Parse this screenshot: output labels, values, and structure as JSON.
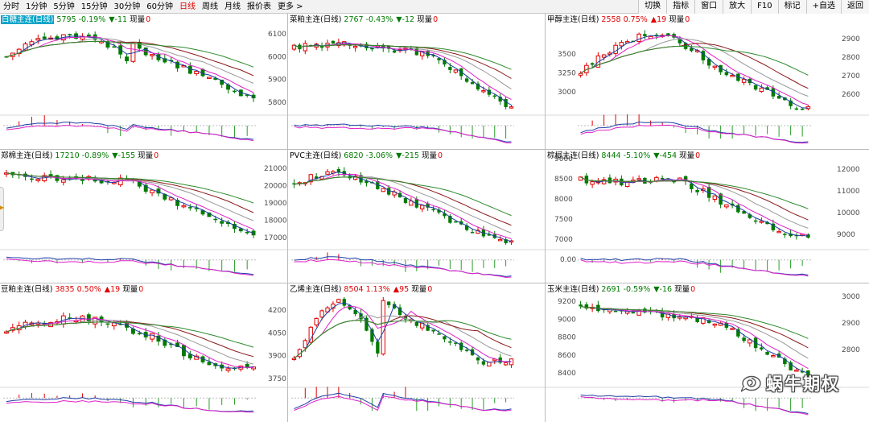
{
  "toolbar": {
    "periods": [
      "分时",
      "1分钟",
      "5分钟",
      "15分钟",
      "30分钟",
      "60分钟",
      "日线",
      "周线",
      "月线",
      "报价表",
      "更多 >"
    ],
    "active_period": "日线",
    "actions": [
      "切换",
      "指标",
      "窗口",
      "放大",
      "F10",
      "标记",
      "+自选",
      "返回"
    ]
  },
  "colors": {
    "up": "#e00000",
    "down": "#007a00",
    "ma5": "#1f3ea6",
    "ma10": "#e020c8",
    "ma20": "#999999",
    "ma40": "#8b1a1a",
    "ma60": "#2e8b2e",
    "highlight": "#0aa3c8"
  },
  "panels": [
    {
      "name": "白糖主连(日线)",
      "highlight": true,
      "price": "5795",
      "pct": "-0.19%",
      "dir": "down",
      "arrow": "▼",
      "chg": "-11",
      "vol_label": "现量",
      "vol_value": "0",
      "yticks": []
    },
    {
      "name": "菜粕主连(日线)",
      "highlight": false,
      "price": "2767",
      "pct": "-0.43%",
      "dir": "down",
      "arrow": "▼",
      "chg": "-12",
      "vol_label": "现量",
      "vol_value": "0",
      "yticks": [
        "6100",
        "6000",
        "5900",
        "5800"
      ]
    },
    {
      "name": "甲醇主连(日线)",
      "highlight": false,
      "price": "2558",
      "pct": "0.75%",
      "dir": "up",
      "arrow": "▲",
      "chg": "19",
      "vol_label": "现量",
      "vol_value": "0",
      "yticks": [
        "3500",
        "3250",
        "3000"
      ]
    },
    {
      "name": "郑棉主连(日线)",
      "highlight": false,
      "price": "17210",
      "pct": "-0.89%",
      "dir": "down",
      "arrow": "▼",
      "chg": "-155",
      "vol_label": "现量",
      "vol_value": "0",
      "yticks": [
        "2900",
        "2800",
        "2700",
        "2600"
      ]
    },
    {
      "name": "PVC主连(日线)",
      "highlight": false,
      "price": "6820",
      "pct": "-3.06%",
      "dir": "down",
      "arrow": "▼",
      "chg": "-215",
      "vol_label": "现量",
      "vol_value": "0",
      "yticks": [
        "21000",
        "20000",
        "19000",
        "18000",
        "17000"
      ]
    },
    {
      "name": "棕榈主连(日线)",
      "highlight": false,
      "price": "8444",
      "pct": "-5.10%",
      "dir": "down",
      "arrow": "▼",
      "chg": "-454",
      "vol_label": "现量",
      "vol_value": "0",
      "yticks": [
        "9000",
        "8500",
        "8000",
        "7500",
        "7000"
      ]
    },
    {
      "name": "豆粕主连(日线)",
      "highlight": false,
      "price": "3835",
      "pct": "0.50%",
      "dir": "up",
      "arrow": "▲",
      "chg": "19",
      "vol_label": "现量",
      "vol_value": "0",
      "yticks": [
        "12000",
        "11000",
        "10000",
        "9000",
        "0.00"
      ]
    },
    {
      "name": "乙烯主连(日线)",
      "highlight": false,
      "price": "8504",
      "pct": "1.13%",
      "dir": "up",
      "arrow": "▲",
      "chg": "95",
      "vol_label": "现量",
      "vol_value": "0",
      "yticks": [
        "4200",
        "4050",
        "3900",
        "3750"
      ]
    },
    {
      "name": "玉米主连(日线)",
      "highlight": false,
      "price": "2691",
      "pct": "-0.59%",
      "dir": "down",
      "arrow": "▼",
      "chg": "-16",
      "vol_label": "现量",
      "vol_value": "0",
      "yticks": [
        "9200",
        "9000",
        "8800",
        "8600",
        "8400"
      ]
    }
  ],
  "right_edge_ticks": [
    [
      "2900",
      "2800",
      "2700",
      "2600"
    ],
    [
      "12000",
      "11000",
      "10000",
      "9000"
    ],
    [
      "3000",
      "2900",
      "2800"
    ]
  ],
  "mid_extra_ticks": [
    "0.00"
  ],
  "watermark": "蜗牛期权"
}
